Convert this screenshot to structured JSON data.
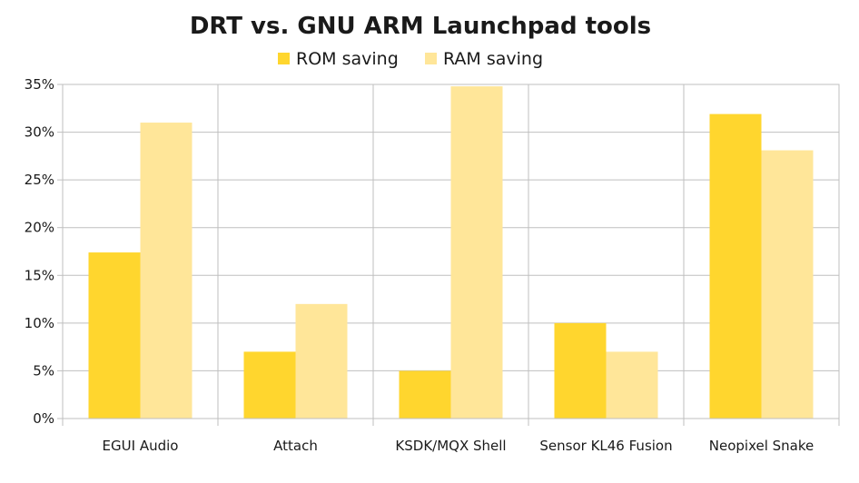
{
  "chart_data": {
    "type": "bar",
    "title": "DRT  vs. GNU ARM Launchpad tools",
    "categories": [
      "EGUI Audio",
      "Attach",
      "KSDK/MQX Shell",
      "Sensor KL46 Fusion",
      "Neopixel Snake"
    ],
    "series": [
      {
        "name": "ROM saving",
        "color": "#FFD62E",
        "values": [
          17.4,
          7.0,
          5.0,
          10.0,
          31.9
        ]
      },
      {
        "name": "RAM saving",
        "color": "#FFE699",
        "values": [
          31.0,
          12.0,
          34.8,
          7.0,
          28.1
        ]
      }
    ],
    "ylim": [
      0,
      35
    ],
    "yticks": [
      0,
      5,
      10,
      15,
      20,
      25,
      30,
      35
    ],
    "ytick_suffix": "%",
    "grid": true,
    "legend_position": "top",
    "xlabel": "",
    "ylabel": ""
  }
}
